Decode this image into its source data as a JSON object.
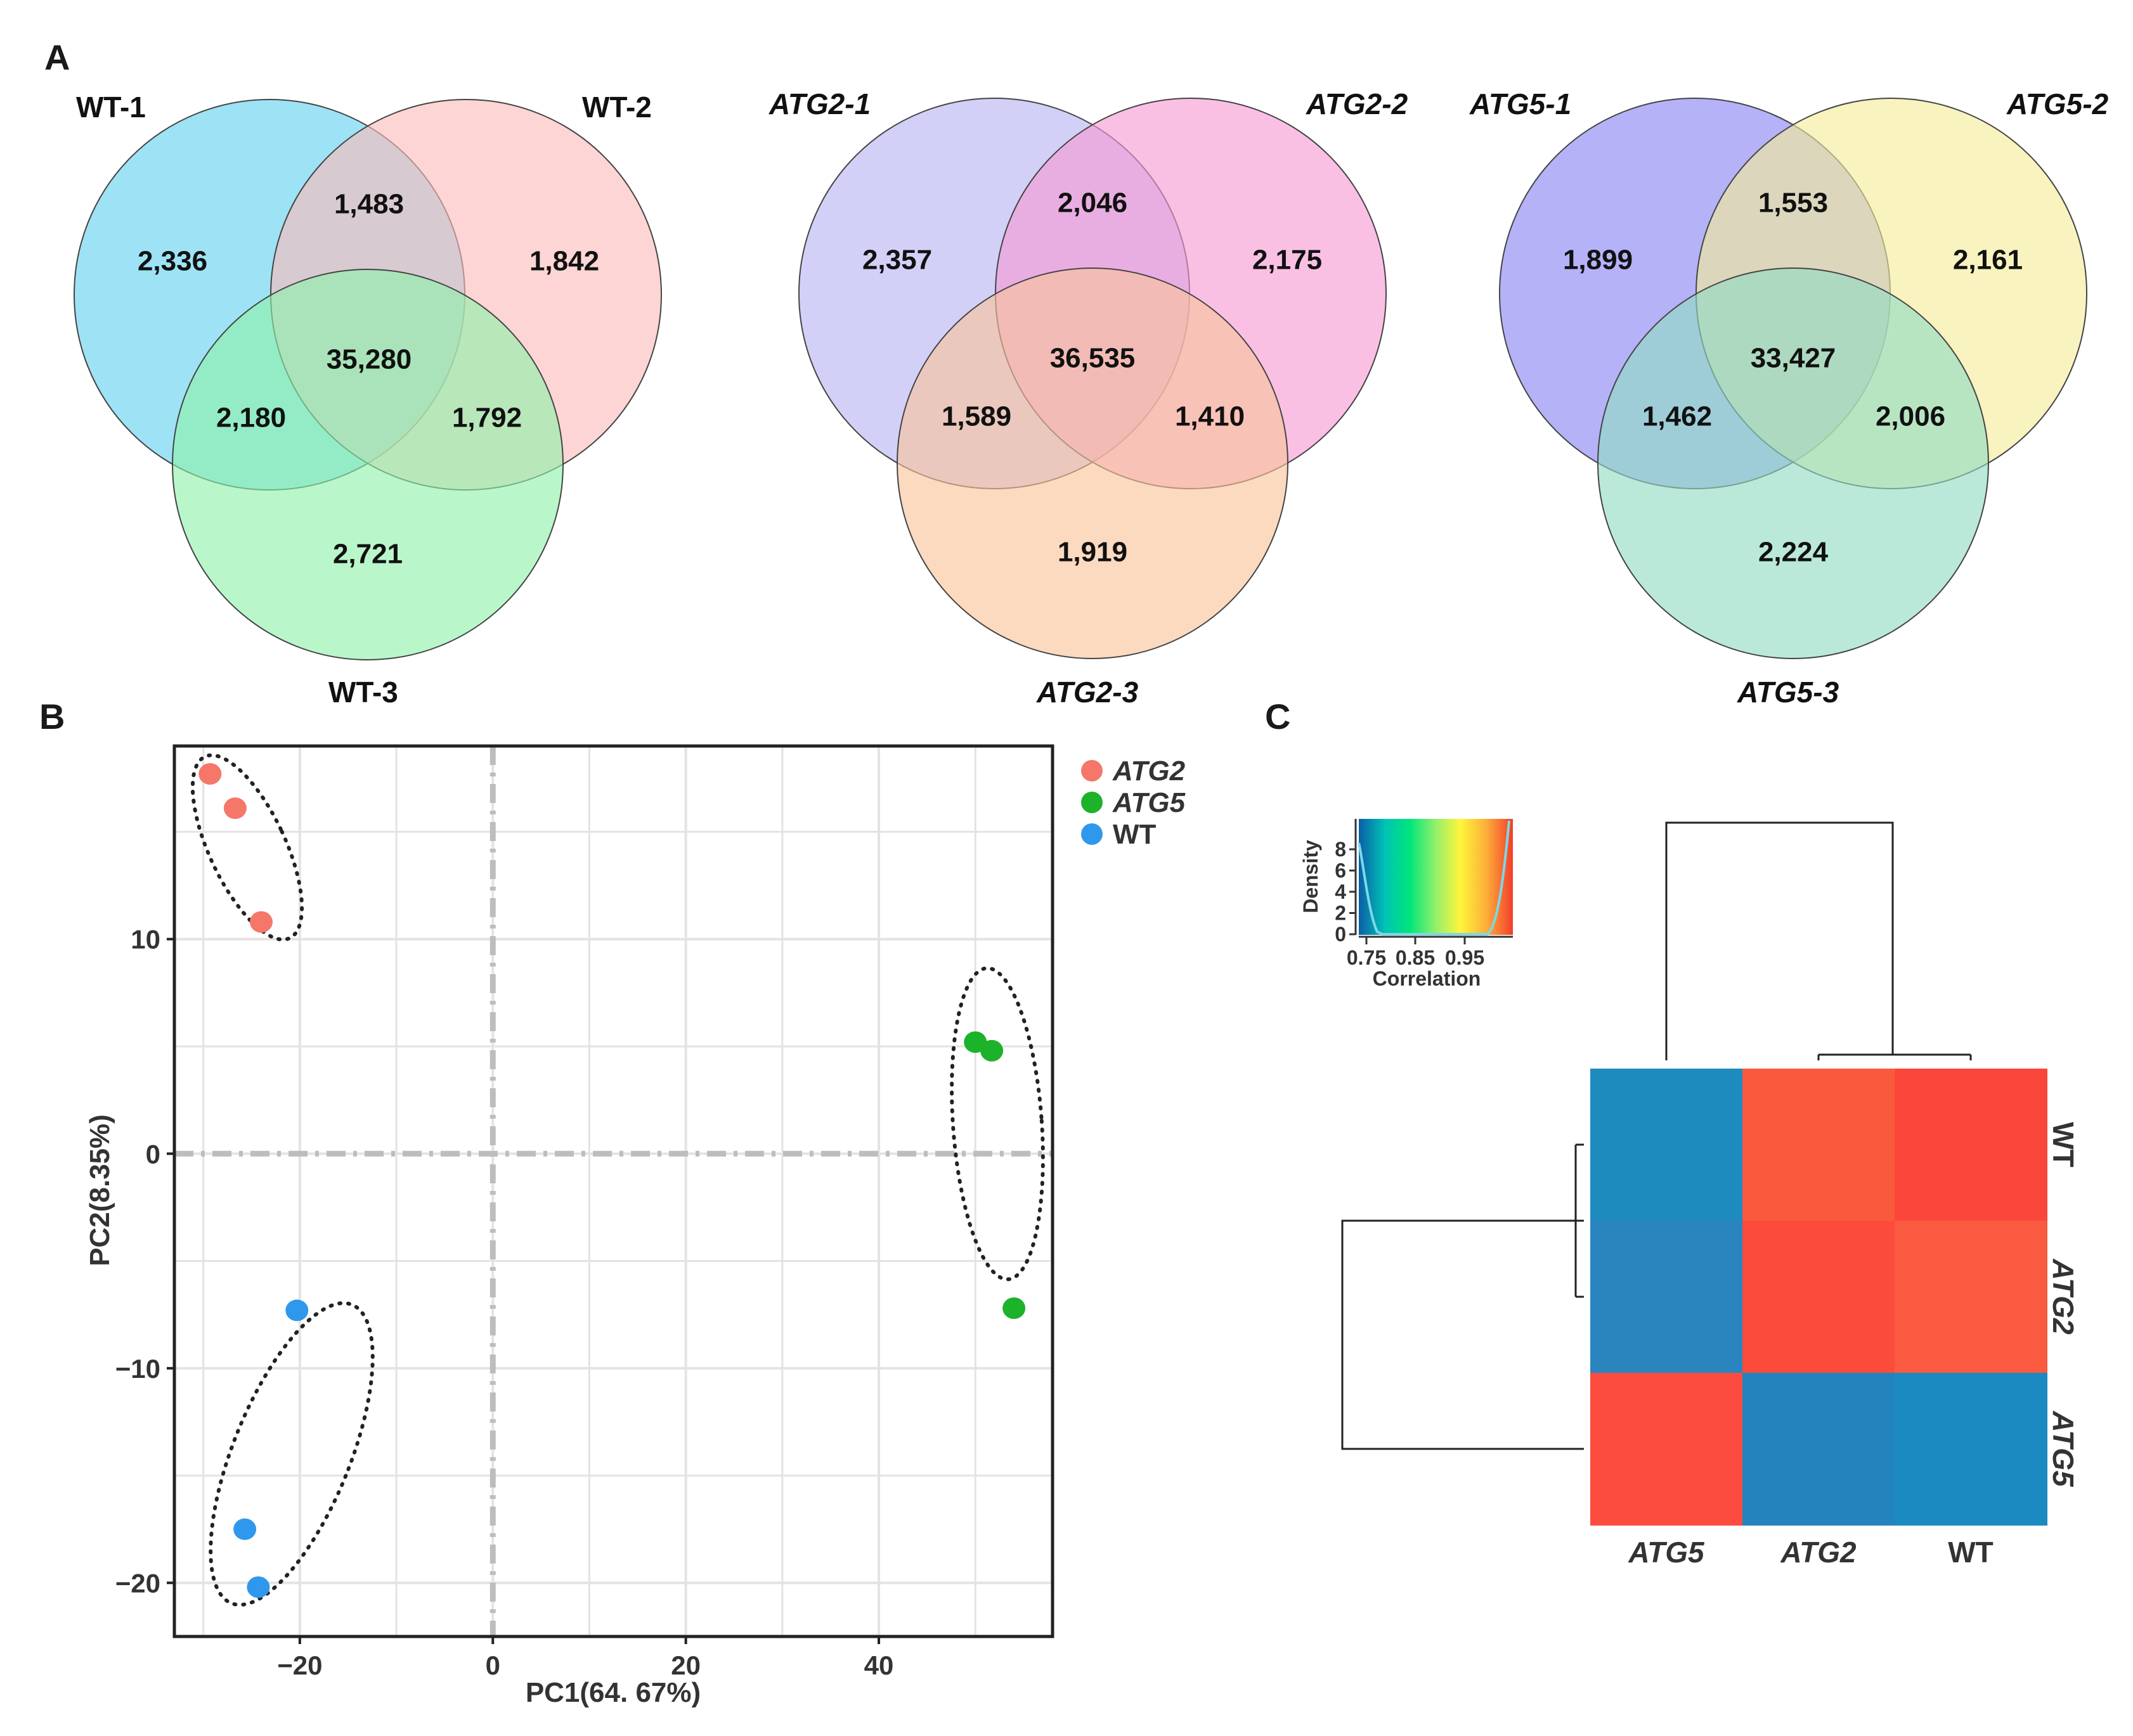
{
  "panels": {
    "A": "A",
    "B": "B",
    "C": "C"
  },
  "chart_data": [
    {
      "type": "venn",
      "sets": [
        "WT-1",
        "WT-2",
        "WT-3"
      ],
      "italic_labels": false,
      "colors": [
        "#7dd8f2",
        "#fbbcbc",
        "#8ef2aa"
      ],
      "regions": {
        "only_1": "2,336",
        "only_2": "1,842",
        "only_3": "2,721",
        "1_2": "1,483",
        "1_3": "2,180",
        "2_3": "1,792",
        "1_2_3": "35,280"
      }
    },
    {
      "type": "venn",
      "sets": [
        "ATG2-1",
        "ATG2-2",
        "ATG2-3"
      ],
      "italic_labels": true,
      "colors": [
        "#c4c0f6",
        "#f79ad4",
        "#f8c49a"
      ],
      "regions": {
        "only_1": "2,357",
        "only_2": "2,175",
        "only_3": "1,919",
        "1_2": "2,046",
        "1_3": "1,589",
        "2_3": "1,410",
        "1_2_3": "36,535"
      }
    },
    {
      "type": "venn",
      "sets": [
        "ATG5-1",
        "ATG5-2",
        "ATG5-3"
      ],
      "italic_labels": true,
      "colors": [
        "#9c98f6",
        "#f4eb98",
        "#8fdcc4"
      ],
      "regions": {
        "only_1": "1,899",
        "only_2": "2,161",
        "only_3": "2,224",
        "1_2": "1,553",
        "1_3": "1,462",
        "2_3": "2,006",
        "1_2_3": "33,427"
      }
    },
    {
      "type": "scatter",
      "xlabel": "PC1(64. 67%)",
      "ylabel": "PC2(8.35%)",
      "xlim": [
        -33,
        58
      ],
      "ylim": [
        -22.5,
        19
      ],
      "xticks": [
        -20,
        0,
        20,
        40
      ],
      "yticks": [
        -20,
        -10,
        0,
        10
      ],
      "xtick_labels": [
        "−20",
        "0",
        "20",
        "40"
      ],
      "ytick_labels": [
        "−20",
        "−10",
        "0",
        "10"
      ],
      "grid": true,
      "legend_position": "right-top",
      "series": [
        {
          "name": "ATG2",
          "italic": true,
          "color": "#f4776a",
          "x": [
            -29.3,
            -26.7,
            -24.0
          ],
          "y": [
            17.7,
            16.1,
            10.8
          ]
        },
        {
          "name": "ATG5",
          "italic": true,
          "color": "#1cb22a",
          "x": [
            50.0,
            51.7,
            54.0
          ],
          "y": [
            5.2,
            4.8,
            -7.2
          ]
        },
        {
          "name": "WT",
          "italic": false,
          "color": "#2f98ec",
          "x": [
            -20.3,
            -25.7,
            -24.3
          ],
          "y": [
            -7.3,
            -17.5,
            -20.2
          ]
        }
      ]
    },
    {
      "type": "heatmap",
      "columns": [
        "ATG5",
        "ATG2",
        "WT"
      ],
      "rows": [
        "WT",
        "ATG2",
        "ATG5"
      ],
      "italic_labels": [
        true,
        true,
        false
      ],
      "colors": [
        [
          "#1e8bbe",
          "#f95a3d",
          "#fb473b"
        ],
        [
          "#2a85be",
          "#fb4c3b",
          "#fa5a3f"
        ],
        [
          "#fb4c3f",
          "#2384bd",
          "#1b8ac0"
        ]
      ],
      "color_key": {
        "xlabel": "Correlation",
        "ylabel": "Density",
        "xtick_labels": [
          "0.75",
          "0.85",
          "0.95"
        ],
        "ytick_labels": [
          "0",
          "2",
          "4",
          "6",
          "8"
        ],
        "gradient": [
          "#0b5fa8",
          "#00c3b5",
          "#00e67c",
          "#93f06a",
          "#fff53a",
          "#fcad3a",
          "#f43d2a"
        ]
      }
    }
  ]
}
